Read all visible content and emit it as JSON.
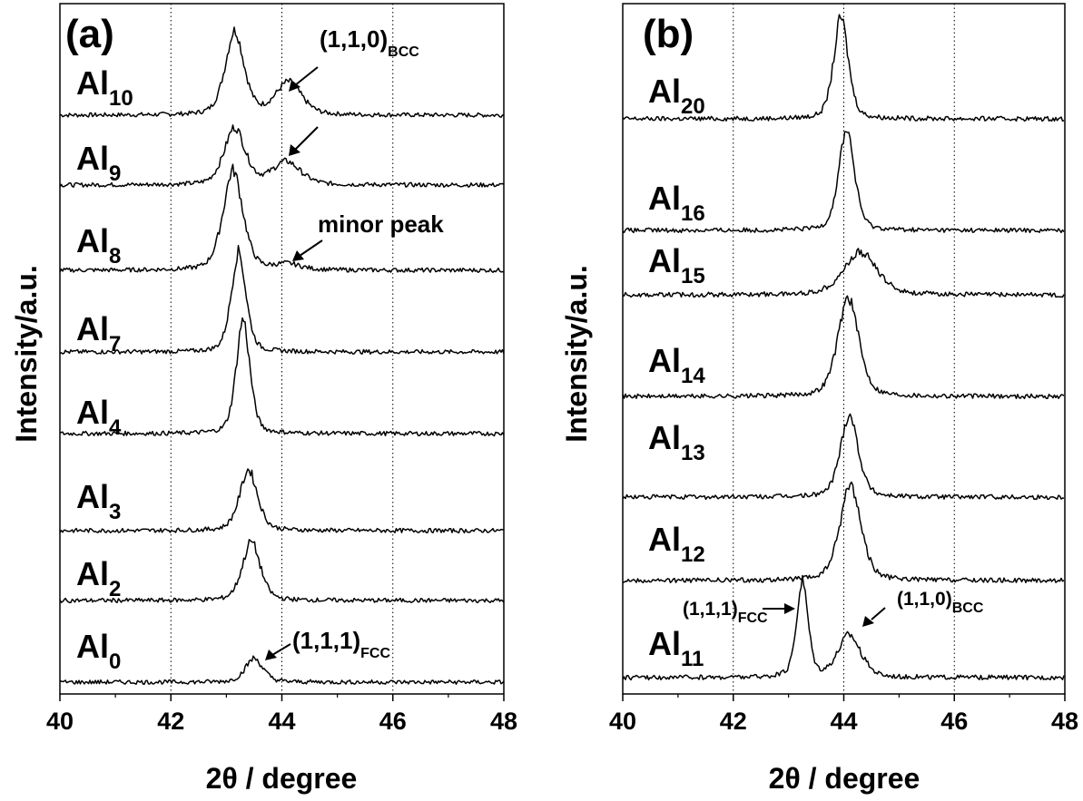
{
  "chart_data": [
    {
      "panel_label": "(a)",
      "type": "line",
      "xlabel": "2θ / degree",
      "ylabel": "Intensity/a.u.",
      "xlim": [
        40,
        48
      ],
      "xticks": [
        "40",
        "42",
        "44",
        "46",
        "48"
      ],
      "grid": "vertical dotted at 42, 44, 46",
      "series": [
        {
          "name": "Al10",
          "label_base": "Al",
          "label_sub": "10",
          "baseline": 7,
          "peaks": [
            {
              "x": 43.15,
              "h": 0.88,
              "w": 0.18
            },
            {
              "x": 44.12,
              "h": 0.34,
              "w": 0.25
            }
          ]
        },
        {
          "name": "Al9",
          "label_base": "Al",
          "label_sub": "9",
          "baseline": 6,
          "peaks": [
            {
              "x": 43.15,
              "h": 0.6,
              "w": 0.2
            },
            {
              "x": 44.08,
              "h": 0.24,
              "w": 0.27
            }
          ]
        },
        {
          "name": "Al8",
          "label_base": "Al",
          "label_sub": "8",
          "baseline": 5,
          "peaks": [
            {
              "x": 43.12,
              "h": 1.05,
              "w": 0.19
            },
            {
              "x": 44.1,
              "h": 0.06,
              "w": 0.25
            }
          ]
        },
        {
          "name": "Al7",
          "label_base": "Al",
          "label_sub": "7",
          "baseline": 4,
          "peaks": [
            {
              "x": 43.22,
              "h": 1.05,
              "w": 0.14
            }
          ]
        },
        {
          "name": "Al4",
          "label_base": "Al",
          "label_sub": "4",
          "baseline": 3,
          "peaks": [
            {
              "x": 43.3,
              "h": 1.2,
              "w": 0.13
            }
          ]
        },
        {
          "name": "Al3",
          "label_base": "Al",
          "label_sub": "3",
          "baseline": 2,
          "peaks": [
            {
              "x": 43.4,
              "h": 0.64,
              "w": 0.17
            }
          ]
        },
        {
          "name": "Al2",
          "label_base": "Al",
          "label_sub": "2",
          "baseline": 1,
          "peaks": [
            {
              "x": 43.45,
              "h": 0.62,
              "w": 0.17
            }
          ]
        },
        {
          "name": "Al0",
          "label_base": "Al",
          "label_sub": "0",
          "baseline": 0,
          "peaks": [
            {
              "x": 43.5,
              "h": 0.25,
              "w": 0.17
            }
          ]
        }
      ],
      "annotations": [
        {
          "text": "(1,1,0)",
          "sub": "BCC"
        },
        {
          "text": "minor peak"
        },
        {
          "text": "(1,1,1)",
          "sub": "FCC"
        }
      ]
    },
    {
      "panel_label": "(b)",
      "type": "line",
      "xlabel": "2θ / degree",
      "ylabel": "Intensity/a.u.",
      "xlim": [
        40,
        48
      ],
      "xticks": [
        "40",
        "42",
        "44",
        "46",
        "48"
      ],
      "grid": "vertical dotted at 42, 44, 46",
      "series": [
        {
          "name": "Al20",
          "label_base": "Al",
          "label_sub": "20",
          "baseline": 6,
          "peaks": [
            {
              "x": 43.95,
              "h": 1.0,
              "w": 0.14
            }
          ]
        },
        {
          "name": "Al16",
          "label_base": "Al",
          "label_sub": "16",
          "baseline": 5,
          "peaks": [
            {
              "x": 44.05,
              "h": 1.0,
              "w": 0.15
            }
          ]
        },
        {
          "name": "Al15",
          "label_base": "Al",
          "label_sub": "15",
          "baseline": 4,
          "peaks": [
            {
              "x": 44.3,
              "h": 0.42,
              "w": 0.32
            }
          ]
        },
        {
          "name": "Al14",
          "label_base": "Al",
          "label_sub": "14",
          "baseline": 3,
          "peaks": [
            {
              "x": 44.08,
              "h": 0.98,
              "w": 0.2
            }
          ]
        },
        {
          "name": "Al13",
          "label_base": "Al",
          "label_sub": "13",
          "baseline": 2,
          "peaks": [
            {
              "x": 44.1,
              "h": 0.82,
              "w": 0.17
            }
          ]
        },
        {
          "name": "Al12",
          "label_base": "Al",
          "label_sub": "12",
          "baseline": 1,
          "peaks": [
            {
              "x": 44.12,
              "h": 0.95,
              "w": 0.2
            }
          ]
        },
        {
          "name": "Al11",
          "label_base": "Al",
          "label_sub": "11",
          "baseline": 0,
          "peaks": [
            {
              "x": 43.25,
              "h": 0.95,
              "w": 0.11
            },
            {
              "x": 44.1,
              "h": 0.42,
              "w": 0.22
            }
          ]
        }
      ],
      "annotations": [
        {
          "text": "(1,1,1)",
          "sub": "FCC"
        },
        {
          "text": "(1,1,0)",
          "sub": "BCC"
        }
      ]
    }
  ]
}
